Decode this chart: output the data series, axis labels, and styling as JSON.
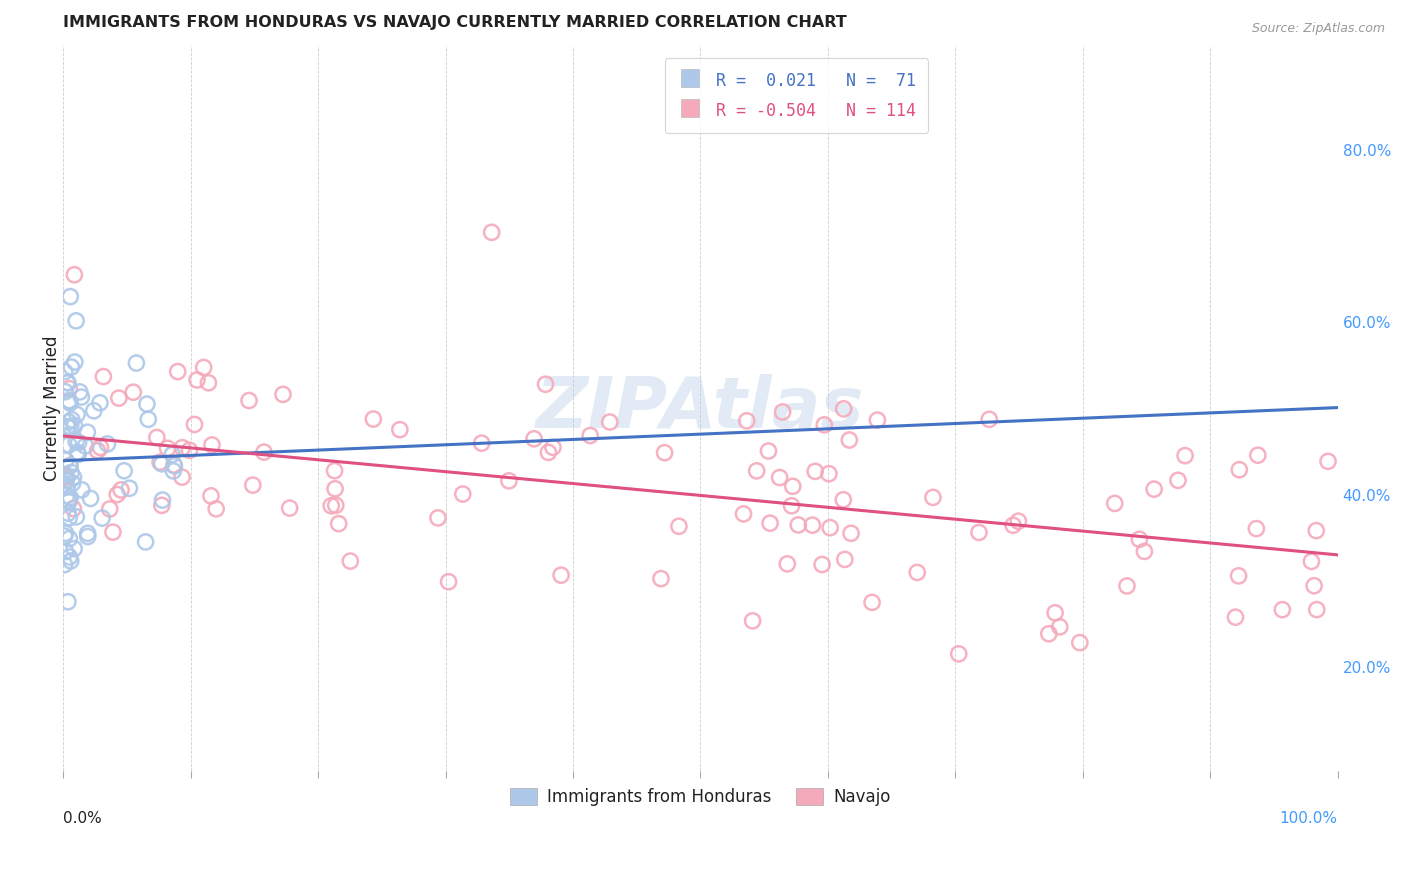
{
  "title": "IMMIGRANTS FROM HONDURAS VS NAVAJO CURRENTLY MARRIED CORRELATION CHART",
  "source": "Source: ZipAtlas.com",
  "ylabel": "Currently Married",
  "ylabel_right_ticks": [
    "80.0%",
    "60.0%",
    "40.0%",
    "20.0%"
  ],
  "ylabel_right_vals": [
    0.8,
    0.6,
    0.4,
    0.2
  ],
  "xlim": [
    0.0,
    1.0
  ],
  "ylim": [
    0.08,
    0.92
  ],
  "blue_R": 0.021,
  "blue_N": 71,
  "pink_R": -0.504,
  "pink_N": 114,
  "legend_label_blue": "Immigrants from Honduras",
  "legend_label_pink": "Navajo",
  "watermark": "ZIPAtlas",
  "blue_color": "#adc8e8",
  "pink_color": "#f5aabb",
  "blue_line_color": "#4472c4",
  "pink_line_color": "#e05080",
  "blue_marker_edge": "#6699cc",
  "pink_marker_edge": "#ee8899",
  "grid_color": "#c8c8c8",
  "background_color": "#ffffff",
  "title_color": "#222222",
  "source_color": "#999999",
  "right_tick_color": "#4499ff",
  "bottom_label_color": "#222222"
}
